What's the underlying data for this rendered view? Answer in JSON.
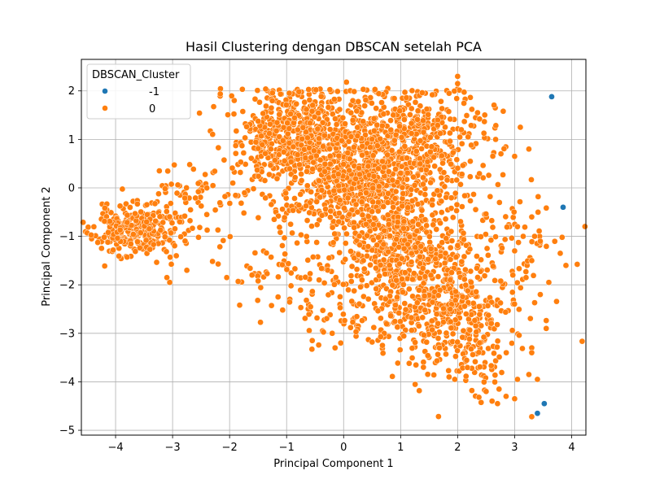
{
  "chart_data": {
    "type": "scatter",
    "title": "Hasil Clustering dengan DBSCAN setelah PCA",
    "xlabel": "Principal Component 1",
    "ylabel": "Principal Component 2",
    "xlim": [
      -4.6,
      4.25
    ],
    "ylim": [
      -5.1,
      2.65
    ],
    "xticks": [
      -4,
      -3,
      -2,
      -1,
      0,
      1,
      2,
      3,
      4
    ],
    "yticks": [
      -5,
      -4,
      -3,
      -2,
      -1,
      0,
      1,
      2
    ],
    "grid": true,
    "legend": {
      "title": "DBSCAN_Cluster",
      "placement": "top-left",
      "entries": [
        {
          "label": "-1",
          "color": "#1f77b4"
        },
        {
          "label": "0",
          "color": "#ff7f0e"
        }
      ]
    },
    "series": [
      {
        "name": "-1",
        "color": "#1f77b4",
        "points": [
          [
            3.65,
            1.88
          ],
          [
            3.85,
            -0.4
          ],
          [
            3.52,
            -4.45
          ],
          [
            3.4,
            -4.65
          ]
        ]
      },
      {
        "name": "0",
        "color": "#ff7f0e",
        "clusters": [
          {
            "center": [
              -3.7,
              -0.9
            ],
            "spread": [
              0.35,
              0.25
            ],
            "n": 260,
            "seed": 11
          },
          {
            "center": [
              -3.2,
              -0.6
            ],
            "spread": [
              0.35,
              0.4
            ],
            "n": 60,
            "seed": 12
          },
          {
            "center": [
              -1.0,
              1.1
            ],
            "spread": [
              0.5,
              0.5
            ],
            "n": 450,
            "seed": 13
          },
          {
            "center": [
              0.8,
              0.8
            ],
            "spread": [
              0.85,
              0.65
            ],
            "n": 800,
            "seed": 14
          },
          {
            "center": [
              0.2,
              -0.1
            ],
            "spread": [
              0.6,
              0.45
            ],
            "n": 350,
            "seed": 15
          },
          {
            "center": [
              1.0,
              -1.3
            ],
            "spread": [
              0.55,
              0.55
            ],
            "n": 450,
            "seed": 16
          },
          {
            "center": [
              1.7,
              -2.4
            ],
            "spread": [
              0.55,
              0.6
            ],
            "n": 320,
            "seed": 17
          },
          {
            "center": [
              2.2,
              -3.3
            ],
            "spread": [
              0.5,
              0.55
            ],
            "n": 120,
            "seed": 18
          },
          {
            "center": [
              -0.9,
              -1.8
            ],
            "spread": [
              0.6,
              0.55
            ],
            "n": 90,
            "seed": 19
          },
          {
            "center": [
              -2.2,
              -0.1
            ],
            "spread": [
              0.55,
              0.4
            ],
            "n": 55,
            "seed": 20
          },
          {
            "center": [
              2.7,
              -1.2
            ],
            "spread": [
              0.6,
              0.8
            ],
            "n": 90,
            "seed": 21
          },
          {
            "center": [
              0.3,
              -2.6
            ],
            "spread": [
              0.4,
              0.35
            ],
            "n": 45,
            "seed": 22
          }
        ],
        "points": [
          [
            -4.2,
            -1.02
          ],
          [
            -3.05,
            -1.95
          ],
          [
            -3.1,
            -1.85
          ],
          [
            -2.75,
            -1.7
          ],
          [
            -2.4,
            -0.55
          ],
          [
            -2.7,
            0.48
          ],
          [
            -2.05,
            -1.85
          ],
          [
            -1.85,
            -1.93
          ],
          [
            -1.5,
            -1.92
          ],
          [
            -1.15,
            -2.25
          ],
          [
            2.0,
            2.3
          ],
          [
            2.0,
            2.15
          ],
          [
            1.85,
            1.95
          ],
          [
            0.05,
            2.18
          ],
          [
            0.55,
            2.03
          ],
          [
            2.25,
            1.62
          ],
          [
            2.35,
            1.55
          ],
          [
            2.8,
            1.58
          ],
          [
            3.1,
            1.25
          ],
          [
            3.25,
            0.8
          ],
          [
            3.0,
            0.65
          ],
          [
            3.3,
            -0.6
          ],
          [
            3.05,
            -0.8
          ],
          [
            3.15,
            -1.0
          ],
          [
            3.35,
            -1.0
          ],
          [
            3.45,
            -1.1
          ],
          [
            3.0,
            -1.3
          ],
          [
            3.3,
            -1.5
          ],
          [
            3.2,
            -1.85
          ],
          [
            3.45,
            -2.2
          ],
          [
            3.6,
            -1.95
          ],
          [
            3.8,
            -1.35
          ],
          [
            3.9,
            -1.6
          ],
          [
            3.3,
            -3.3
          ],
          [
            3.3,
            -3.4
          ],
          [
            3.25,
            -3.85
          ],
          [
            3.4,
            -3.95
          ],
          [
            3.3,
            -4.72
          ],
          [
            3.0,
            -4.35
          ],
          [
            3.05,
            -3.95
          ],
          [
            2.85,
            -4.3
          ],
          [
            2.7,
            -4.45
          ],
          [
            2.5,
            -4.2
          ],
          [
            2.25,
            -4.18
          ],
          [
            1.95,
            -3.95
          ],
          [
            1.15,
            -3.62
          ],
          [
            1.4,
            -3.7
          ],
          [
            1.85,
            -3.9
          ],
          [
            -0.55,
            -3.15
          ],
          [
            -0.2,
            -3.0
          ],
          [
            -0.15,
            -3.3
          ],
          [
            -0.05,
            -3.2
          ],
          [
            0.5,
            -3.18
          ]
        ]
      }
    ]
  }
}
